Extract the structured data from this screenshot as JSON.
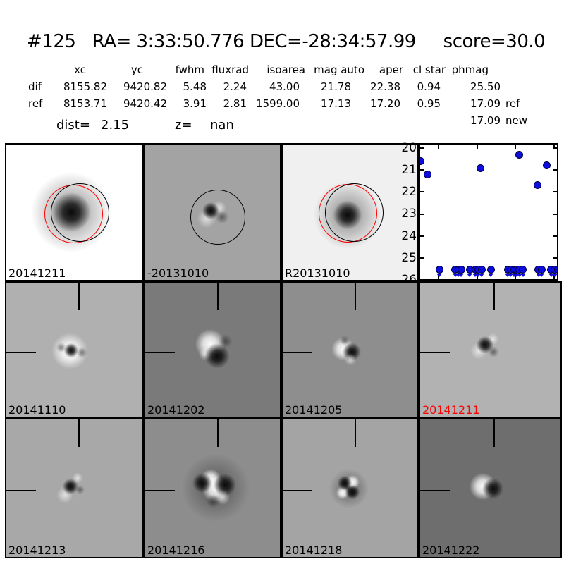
{
  "title": "#125   RA= 3:33:50.776 DEC=-28:34:57.99     score=30.0",
  "table": {
    "headers": [
      "xc",
      "yc",
      "fwhm",
      "fluxrad",
      "isoarea",
      "mag auto",
      "aper",
      "cl star",
      "phmag"
    ],
    "rows": [
      {
        "label": "dif",
        "cells": [
          "8155.82",
          "9420.82",
          "5.48",
          "2.24",
          "43.00",
          "21.78",
          "22.38",
          "0.94",
          "25.50"
        ],
        "suffix": ""
      },
      {
        "label": "ref",
        "cells": [
          "8153.71",
          "9420.42",
          "3.91",
          "2.81",
          "1599.00",
          "17.13",
          "17.20",
          "0.95",
          "17.09"
        ],
        "suffix": "ref"
      }
    ],
    "extra_phmag": {
      "value": "17.09",
      "suffix": "new"
    },
    "dist": {
      "label": "dist=",
      "value": "2.15"
    },
    "z": {
      "label": "z=",
      "value": "nan"
    }
  },
  "panels": {
    "row1": [
      {
        "label": "20141211",
        "color": "#000000"
      },
      {
        "label": "-20131010",
        "color": "#000000"
      },
      {
        "label": "R20131010",
        "color": "#000000"
      }
    ],
    "row2": [
      {
        "label": "20141110",
        "color": "#000000"
      },
      {
        "label": "20141202",
        "color": "#000000"
      },
      {
        "label": "20141205",
        "color": "#000000"
      },
      {
        "label": "20141211",
        "color": "#ff0000"
      }
    ],
    "row3": [
      {
        "label": "20141213",
        "color": "#000000"
      },
      {
        "label": "20141216",
        "color": "#000000"
      },
      {
        "label": "20141218",
        "color": "#000000"
      },
      {
        "label": "20141222",
        "color": "#000000"
      }
    ]
  },
  "chart_data": {
    "type": "scatter",
    "title": "",
    "xlabel": "",
    "ylabel": "",
    "xlim": [
      -126,
      54
    ],
    "ylim": [
      26,
      20
    ],
    "y_axis_inverted": true,
    "grid": false,
    "legend": "none",
    "marker": "circle",
    "marker_color": "#0d0de0",
    "xticks": [
      "−100",
      "−50",
      "0",
      "50"
    ],
    "xtick_values": [
      -100,
      -50,
      0,
      50
    ],
    "yticks": [
      "20",
      "21",
      "22",
      "23",
      "24",
      "25",
      "26"
    ],
    "ytick_values": [
      20,
      21,
      22,
      23,
      24,
      25,
      26
    ],
    "series": [
      {
        "name": "detections",
        "points": [
          [
            -123,
            20.6
          ],
          [
            -114,
            21.2
          ],
          [
            -45,
            20.9
          ],
          [
            5.5,
            20.3
          ],
          [
            29,
            21.7
          ],
          [
            41,
            20.8
          ]
        ]
      },
      {
        "name": "upper-limits",
        "limit_mag": 25.55,
        "x": [
          -99,
          -78,
          -74,
          -70.6,
          -59.6,
          -52,
          -48.6,
          -44,
          -32,
          -10,
          -6.4,
          -1.8,
          1.8,
          5.5,
          10,
          30,
          34,
          46.5,
          51,
          55.6
        ]
      }
    ]
  }
}
